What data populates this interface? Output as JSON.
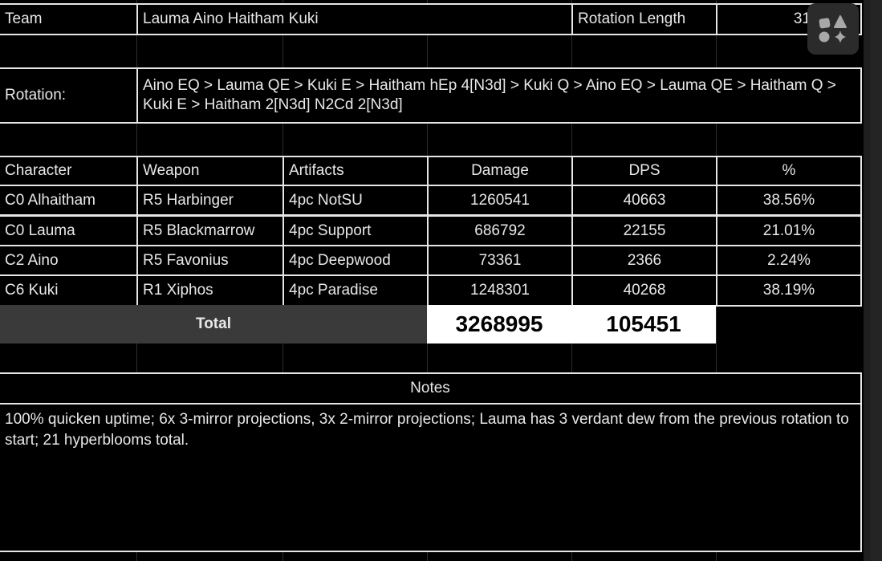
{
  "team": {
    "label": "Team",
    "value": "Lauma Aino Haitham Kuki",
    "rotation_length_label": "Rotation Length",
    "rotation_length_value": "31"
  },
  "rotation": {
    "label": "Rotation:",
    "value": "Aino EQ > Lauma QE > Kuki E > Haitham hEp 4[N3d] > Kuki Q > Aino EQ > Lauma QE > Haitham Q > Kuki E > Haitham 2[N3d] N2Cd 2[N3d]"
  },
  "table": {
    "headers": [
      "Character",
      "Weapon",
      "Artifacts",
      "Damage",
      "DPS",
      "%"
    ],
    "rows": [
      [
        "C0 Alhaitham",
        "R5 Harbinger",
        "4pc NotSU",
        "1260541",
        "40663",
        "38.56%"
      ],
      [
        "C0 Lauma",
        "R5 Blackmarrow",
        "4pc Support",
        "686792",
        "22155",
        "21.01%"
      ],
      [
        "C2 Aino",
        "R5 Favonius",
        "4pc Deepwood",
        "73361",
        "2366",
        "2.24%"
      ],
      [
        "C6 Kuki",
        "R1 Xiphos",
        "4pc Paradise",
        "1248301",
        "40268",
        "38.19%"
      ]
    ],
    "total_label": "Total",
    "total_damage": "3268995",
    "total_dps": "105451"
  },
  "notes": {
    "label": "Notes",
    "text": "100% quicken uptime; 6x 3-mirror projections, 3x 2-mirror projections; Lauma has 3 verdant dew from the previous rotation to start; 21 hyperblooms total."
  },
  "floating_button": {
    "icon": "shapes-icon"
  }
}
